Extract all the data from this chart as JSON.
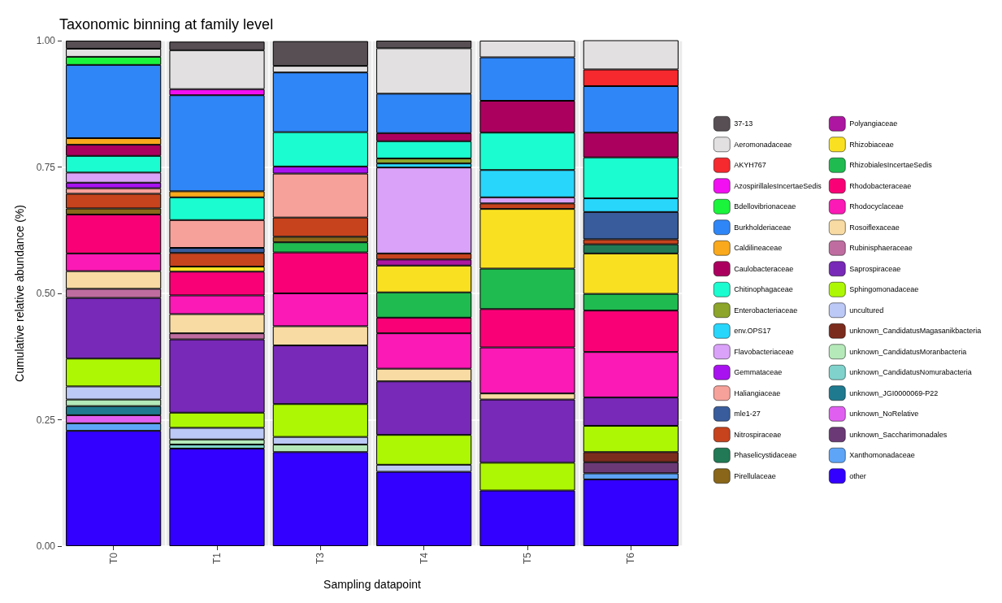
{
  "chart_data": {
    "type": "bar",
    "stacked": true,
    "title": "Taxonomic binning at family level",
    "xlabel": "Sampling datapoint",
    "ylabel": "Cumulative relative abundance (%)",
    "categories": [
      "T0",
      "T1",
      "T3",
      "T4",
      "T5",
      "T6"
    ],
    "ylim": [
      0,
      1
    ],
    "yticks": [
      {
        "value": 0,
        "label": "0.00"
      },
      {
        "value": 0.25,
        "label": "0.25"
      },
      {
        "value": 0.5,
        "label": "0.50"
      },
      {
        "value": 0.75,
        "label": "0.75"
      },
      {
        "value": 1,
        "label": "1.00"
      }
    ],
    "grid": true,
    "legend": "right",
    "series": [
      {
        "name": "other",
        "color": "#3300ff",
        "values": [
          0.228,
          0.193,
          0.186,
          0.147,
          0.11,
          0.132
        ]
      },
      {
        "name": "Xanthomonadaceae",
        "color": "#5ea5f7",
        "values": [
          0.015,
          null,
          null,
          null,
          null,
          0.012
        ]
      },
      {
        "name": "unknown_Saccharimonadales",
        "color": "#6b3a76",
        "values": [
          null,
          null,
          null,
          null,
          null,
          0.022
        ]
      },
      {
        "name": "unknown_NoRelative",
        "color": "#e05ff0",
        "values": [
          0.016,
          null,
          null,
          null,
          null,
          null
        ]
      },
      {
        "name": "unknown_JGI0000069-P22",
        "color": "#1f7a8f",
        "values": [
          0.018,
          null,
          null,
          null,
          null,
          null
        ]
      },
      {
        "name": "unknown_CandidatusNomurabacteria",
        "color": "#7fd3cc",
        "values": [
          null,
          0.008,
          null,
          null,
          null,
          null
        ]
      },
      {
        "name": "unknown_CandidatusMoranbacteria",
        "color": "#b5e9b9",
        "values": [
          0.013,
          0.01,
          0.015,
          null,
          null,
          null
        ]
      },
      {
        "name": "unknown_CandidatusMagasanikbacteria",
        "color": "#7c2c1d",
        "values": [
          null,
          null,
          null,
          null,
          null,
          0.02
        ]
      },
      {
        "name": "uncultured",
        "color": "#bcc8f5",
        "values": [
          0.026,
          0.023,
          0.015,
          0.014,
          null,
          null
        ]
      },
      {
        "name": "Sphingomonadaceae",
        "color": "#aef704",
        "values": [
          0.055,
          0.03,
          0.065,
          0.059,
          0.055,
          0.052
        ]
      },
      {
        "name": "Saprospiraceae",
        "color": "#7829b7",
        "values": [
          0.12,
          0.145,
          0.116,
          0.106,
          0.125,
          0.056
        ]
      },
      {
        "name": "Rubinisphaeraceae",
        "color": "#bf6da0",
        "values": [
          0.018,
          0.012,
          null,
          null,
          null,
          null
        ]
      },
      {
        "name": "Rosoiflexaceae",
        "color": "#f7dba2",
        "values": [
          0.035,
          0.038,
          0.038,
          0.025,
          0.012,
          null
        ]
      },
      {
        "name": "Rhodocyclaceae",
        "color": "#fb1ab5",
        "values": [
          0.035,
          0.037,
          0.065,
          0.07,
          0.091,
          0.09
        ]
      },
      {
        "name": "Rhodobacteraceae",
        "color": "#fa0077",
        "values": [
          0.077,
          0.047,
          0.081,
          0.031,
          0.076,
          0.082
        ]
      },
      {
        "name": "RhizobialesIncertaeSedis",
        "color": "#1fbb50",
        "values": [
          null,
          null,
          0.02,
          0.05,
          0.08,
          0.033
        ]
      },
      {
        "name": "Rhizobiaceae",
        "color": "#f9e122",
        "values": [
          null,
          0.01,
          null,
          0.053,
          0.118,
          0.08
        ]
      },
      {
        "name": "Polyangiaceae",
        "color": "#ad16a1",
        "values": [
          null,
          null,
          null,
          0.012,
          null,
          null
        ]
      },
      {
        "name": "Pirellulaceae",
        "color": "#896619",
        "values": [
          0.012,
          null,
          0.011,
          null,
          null,
          null
        ]
      },
      {
        "name": "Phaselicystidaceae",
        "color": "#217a55",
        "values": [
          null,
          null,
          null,
          null,
          null,
          0.018
        ]
      },
      {
        "name": "Nitrospiraceae",
        "color": "#c6431d",
        "values": [
          0.029,
          0.027,
          0.038,
          0.012,
          0.011,
          0.01
        ]
      },
      {
        "name": "mle1-27",
        "color": "#385c9c",
        "values": [
          null,
          0.01,
          null,
          null,
          null,
          0.054
        ]
      },
      {
        "name": "Haliangiaceae",
        "color": "#f6a19a",
        "values": [
          0.011,
          0.055,
          0.087,
          null,
          null,
          null
        ]
      },
      {
        "name": "Gemmataceae",
        "color": "#a812f0",
        "values": [
          0.011,
          null,
          0.014,
          null,
          null,
          null
        ]
      },
      {
        "name": "Flavobacteriaceae",
        "color": "#daa2f9",
        "values": [
          0.02,
          null,
          null,
          0.17,
          0.012,
          null
        ]
      },
      {
        "name": "env.OPS17",
        "color": "#29d6fb",
        "values": [
          null,
          null,
          null,
          0.008,
          0.054,
          0.027
        ]
      },
      {
        "name": "Enterobacteriaceae",
        "color": "#8ca52a",
        "values": [
          null,
          null,
          null,
          0.01,
          null,
          null
        ]
      },
      {
        "name": "Chitinophagaceae",
        "color": "#1bfdd0",
        "values": [
          0.033,
          0.045,
          0.068,
          0.034,
          0.074,
          0.081
        ]
      },
      {
        "name": "Caulobacteraceae",
        "color": "#ac005f",
        "values": [
          0.022,
          null,
          null,
          0.016,
          0.063,
          0.049
        ]
      },
      {
        "name": "Caldilineaceae",
        "color": "#f9a91b",
        "values": [
          0.013,
          0.012,
          null,
          null,
          null,
          null
        ]
      },
      {
        "name": "Burkholderiaceae",
        "color": "#2f86f7",
        "values": [
          0.145,
          0.19,
          0.118,
          0.078,
          0.086,
          0.092
        ]
      },
      {
        "name": "Bdellovibrionaceae",
        "color": "#1af53c",
        "values": [
          0.016,
          null,
          null,
          null,
          null,
          null
        ]
      },
      {
        "name": "AzospirillalesIncertaeSedis",
        "color": "#f20ff2",
        "values": [
          null,
          0.012,
          null,
          null,
          null,
          null
        ]
      },
      {
        "name": "AKYH767",
        "color": "#f5292e",
        "values": [
          null,
          null,
          null,
          null,
          null,
          0.033
        ]
      },
      {
        "name": "Aeromonadaceae",
        "color": "#e2e0e0",
        "values": [
          0.016,
          0.077,
          0.013,
          0.09,
          0.033,
          0.058
        ]
      },
      {
        "name": "37-13",
        "color": "#574f54",
        "values": [
          0.016,
          0.017,
          0.049,
          0.015,
          null,
          null
        ]
      }
    ]
  }
}
